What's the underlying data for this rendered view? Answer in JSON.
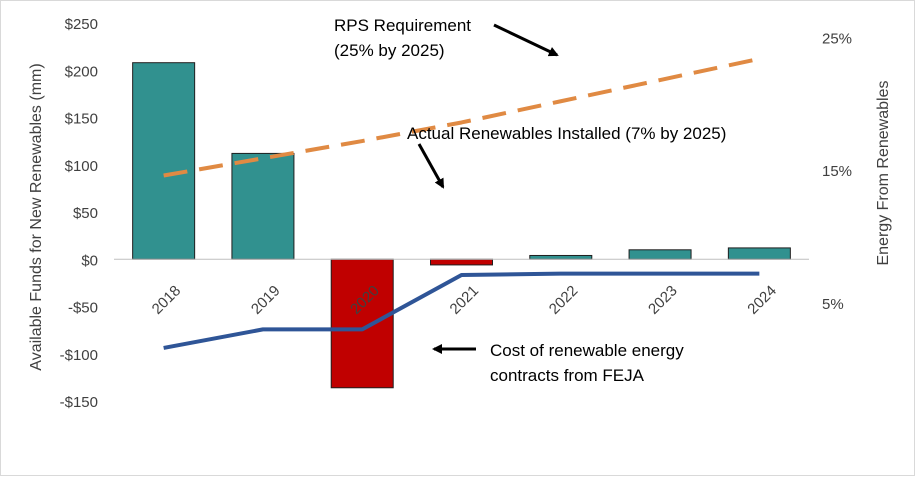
{
  "chart_data": {
    "type": "bar",
    "categories": [
      "2018",
      "2019",
      "2020",
      "2021",
      "2022",
      "2023",
      "2024"
    ],
    "ylabel": "Available Funds for New Renewables  (mm)",
    "y2label": "Energy From Renewables",
    "ylim": [
      -150,
      250
    ],
    "y_ticks": [
      250,
      200,
      150,
      100,
      50,
      0,
      -50,
      -100,
      -150
    ],
    "y_tick_labels": [
      "$250",
      "$200",
      "$150",
      "$100",
      "$50",
      "$0",
      "-$50",
      "-$100",
      "-$150"
    ],
    "y2lim": [
      -2.4,
      26.1
    ],
    "y2_ticks": [
      25,
      15,
      5
    ],
    "y2_tick_labels": [
      "25%",
      "15%",
      "5%"
    ],
    "bar_values": [
      208,
      112,
      -136,
      -6,
      4,
      10,
      12
    ],
    "bar_colors": [
      "#31918f",
      "#31918f",
      "#c00000",
      "#c00000",
      "#31918f",
      "#31918f",
      "#31918f"
    ],
    "lines": [
      {
        "values": [
          14.6,
          15.9,
          17.2,
          18.6,
          20.2,
          21.8,
          23.4
        ],
        "axis": "secondary",
        "color": "#e08a43",
        "style": "dashed"
      },
      {
        "values": [
          1.6,
          3.0,
          3.0,
          7.1,
          7.2,
          7.2,
          7.2
        ],
        "axis": "secondary",
        "color": "#2f5597",
        "style": "solid"
      }
    ],
    "annotations": {
      "rps_line1": "RPS Requirement",
      "rps_line2": "(25% by 2025)",
      "actual": "Actual Renewables Installed (7% by 2025)",
      "cost_line1": "Cost of renewable energy",
      "cost_line2": "contracts from FEJA"
    },
    "grid": false
  },
  "colors": {
    "teal": "#31918f",
    "red": "#c00000",
    "orange": "#e08a43",
    "navy": "#2f5597",
    "text": "#404040"
  }
}
